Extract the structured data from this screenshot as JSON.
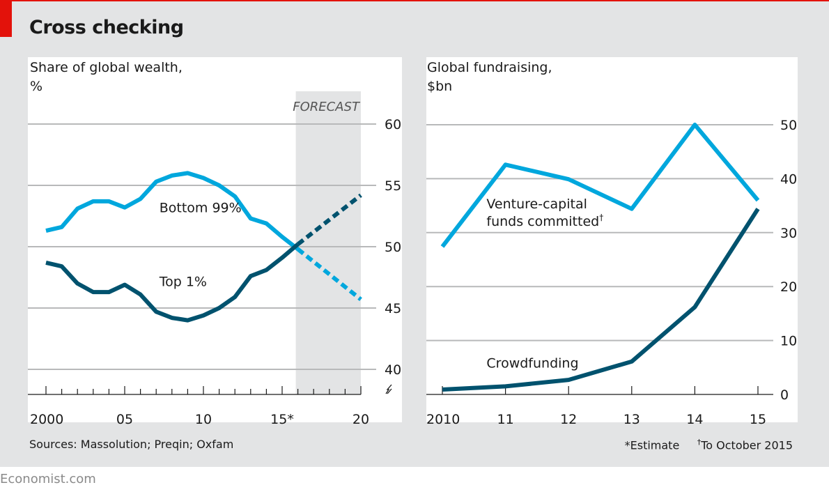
{
  "title": "Cross checking",
  "colors": {
    "accent_red": "#e3120b",
    "light_blue": "#00a7dd",
    "dark_blue": "#00526e",
    "gridline": "#b8b9ba",
    "forecast_band": "#e3e4e5"
  },
  "footer": {
    "sources": "Sources: Massolution; Preqin; Oxfam",
    "note_estimate": "*Estimate",
    "note_dagger_mark": "†",
    "note_dagger": "To October 2015",
    "brand": "Economist.com"
  },
  "chart_data": [
    {
      "type": "line",
      "title": "Share of global wealth,",
      "subtitle": "%",
      "xlabel": "",
      "ylabel": "%",
      "xlim": [
        2000,
        2020
      ],
      "ylim": [
        40,
        60
      ],
      "yaxis_break": true,
      "y_ticks": [
        40,
        45,
        50,
        55,
        60
      ],
      "y_tick_labels": [
        "40",
        "45",
        "50",
        "55",
        "60"
      ],
      "y_axis_side": "right",
      "x_ticks_major": [
        2000,
        2005,
        2010,
        2015,
        2020
      ],
      "x_tick_labels": [
        "2000",
        "05",
        "10",
        "15*",
        "20"
      ],
      "grid": true,
      "forecast": {
        "label": "FORECAST",
        "from": 2016,
        "to": 2020
      },
      "series": [
        {
          "name": "Bottom 99%",
          "color": "#00a7dd",
          "x": [
            2000,
            2001,
            2002,
            2003,
            2004,
            2005,
            2006,
            2007,
            2008,
            2009,
            2010,
            2011,
            2012,
            2013,
            2014,
            2015,
            2016
          ],
          "values": [
            51.3,
            51.6,
            53.1,
            53.7,
            53.7,
            53.2,
            53.9,
            55.3,
            55.8,
            56.0,
            55.6,
            55.0,
            54.1,
            52.3,
            51.9,
            50.8,
            49.8
          ],
          "forecast_x": [
            2016,
            2020
          ],
          "forecast_values": [
            49.8,
            45.7
          ],
          "label_at": {
            "x": 2007.2,
            "y": 52.8
          }
        },
        {
          "name": "Top 1%",
          "color": "#00526e",
          "x": [
            2000,
            2001,
            2002,
            2003,
            2004,
            2005,
            2006,
            2007,
            2008,
            2009,
            2010,
            2011,
            2012,
            2013,
            2014,
            2015,
            2016
          ],
          "values": [
            48.7,
            48.4,
            47.0,
            46.3,
            46.3,
            46.9,
            46.1,
            44.7,
            44.2,
            44.0,
            44.4,
            45.0,
            45.9,
            47.6,
            48.1,
            49.1,
            50.2
          ],
          "forecast_x": [
            2016,
            2020
          ],
          "forecast_values": [
            50.2,
            54.2
          ],
          "label_at": {
            "x": 2007.2,
            "y": 46.8
          }
        }
      ]
    },
    {
      "type": "line",
      "title": "Global fundraising,",
      "subtitle": "$bn",
      "xlabel": "",
      "ylabel": "$bn",
      "xlim": [
        2010,
        2015
      ],
      "ylim": [
        0,
        50
      ],
      "y_ticks": [
        0,
        10,
        20,
        30,
        40,
        50
      ],
      "y_tick_labels": [
        "0",
        "10",
        "20",
        "30",
        "40",
        "50"
      ],
      "y_axis_side": "right",
      "x_ticks_major": [
        2010,
        2011,
        2012,
        2013,
        2014,
        2015
      ],
      "x_tick_labels": [
        "2010",
        "11",
        "12",
        "13",
        "14",
        "15"
      ],
      "grid": true,
      "series": [
        {
          "name": "Venture-capital funds committed",
          "name_line1": "Venture-capital",
          "name_line2": "funds committed",
          "footnote_mark": "†",
          "color": "#00a7dd",
          "x": [
            2010,
            2011,
            2012,
            2013,
            2014,
            2015
          ],
          "values": [
            27.4,
            42.6,
            39.9,
            34.4,
            50.0,
            36.0
          ],
          "label_at": {
            "x": 2010.7,
            "y": 34.5
          }
        },
        {
          "name": "Crowdfunding",
          "color": "#00526e",
          "x": [
            2010,
            2011,
            2012,
            2013,
            2014,
            2015
          ],
          "values": [
            0.9,
            1.5,
            2.7,
            6.1,
            16.2,
            34.4
          ],
          "label_at": {
            "x": 2010.7,
            "y": 5.0
          }
        }
      ]
    }
  ]
}
